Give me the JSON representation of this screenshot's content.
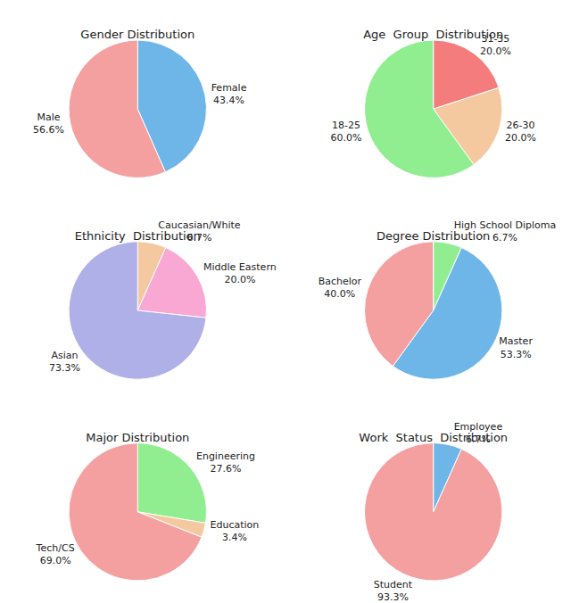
{
  "chart_data": [
    {
      "type": "pie",
      "title": "Gender Distribution",
      "categories": [
        "Female",
        "Male"
      ],
      "values": [
        43.4,
        56.6
      ],
      "value_labels": [
        "43.4%",
        "56.6%"
      ],
      "colors": [
        "#6EB5E8",
        "#F4A0A0"
      ],
      "data_labels": true
    },
    {
      "type": "pie",
      "title": "Age  Group  Distribution",
      "categories": [
        "31-35",
        "26-30",
        "18-25"
      ],
      "values": [
        20.0,
        20.0,
        60.0
      ],
      "value_labels": [
        "20.0%",
        "20.0%",
        "60.0%"
      ],
      "colors": [
        "#F47C7C",
        "#F5C9A0",
        "#90EE90"
      ],
      "data_labels": true
    },
    {
      "type": "pie",
      "title": "Ethnicity  Distribution",
      "categories": [
        "Caucasian/White",
        "Middle Eastern",
        "Asian"
      ],
      "values": [
        6.7,
        20.0,
        73.3
      ],
      "value_labels": [
        "6.7%",
        "20.0%",
        "73.3%"
      ],
      "colors": [
        "#F5C9A0",
        "#F9A8D4",
        "#B0B0E8"
      ],
      "data_labels": true
    },
    {
      "type": "pie",
      "title": "Degree Distribution",
      "categories": [
        "High School Diploma",
        "Master",
        "Bachelor"
      ],
      "values": [
        6.7,
        53.3,
        40.0
      ],
      "value_labels": [
        "6.7%",
        "53.3%",
        "40.0%"
      ],
      "colors": [
        "#90EE90",
        "#6EB5E8",
        "#F4A0A0"
      ],
      "data_labels": true
    },
    {
      "type": "pie",
      "title": "Major Distribution",
      "categories": [
        "Engineering",
        "Education",
        "Tech/CS"
      ],
      "values": [
        27.6,
        3.4,
        69.0
      ],
      "value_labels": [
        "27.6%",
        "3.4%",
        "69.0%"
      ],
      "colors": [
        "#90EE90",
        "#F5C9A0",
        "#F4A0A0"
      ],
      "data_labels": true
    },
    {
      "type": "pie",
      "title": "Work  Status  Distribution",
      "categories": [
        "Employee",
        "Student"
      ],
      "values": [
        6.7,
        93.3
      ],
      "value_labels": [
        "6.7%",
        "93.3%"
      ],
      "colors": [
        "#6EB5E8",
        "#F4A0A0"
      ],
      "data_labels": true
    }
  ]
}
